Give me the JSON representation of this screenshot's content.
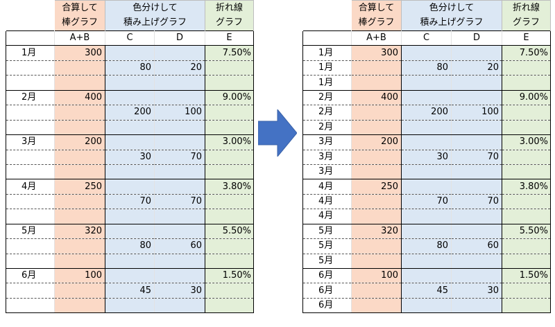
{
  "left_table": {
    "header_top": [
      "合算して",
      "色分けして",
      "折れ線"
    ],
    "header_bottom": [
      "棒グラフ",
      "積み上げグラフ",
      "グラフ"
    ],
    "col_headers": [
      "",
      "A+B",
      "C",
      "D",
      "E"
    ],
    "rows": [
      [
        "1月",
        "300",
        "",
        "",
        "7.50%"
      ],
      [
        "",
        "",
        "80",
        "20",
        ""
      ],
      [
        "",
        "",
        "",
        "",
        ""
      ],
      [
        "2月",
        "400",
        "",
        "",
        "9.00%"
      ],
      [
        "",
        "",
        "200",
        "100",
        ""
      ],
      [
        "",
        "",
        "",
        "",
        ""
      ],
      [
        "3月",
        "200",
        "",
        "",
        "3.00%"
      ],
      [
        "",
        "",
        "30",
        "70",
        ""
      ],
      [
        "",
        "",
        "",
        "",
        ""
      ],
      [
        "4月",
        "250",
        "",
        "",
        "3.80%"
      ],
      [
        "",
        "",
        "70",
        "70",
        ""
      ],
      [
        "",
        "",
        "",
        "",
        ""
      ],
      [
        "5月",
        "320",
        "",
        "",
        "5.50%"
      ],
      [
        "",
        "",
        "80",
        "60",
        ""
      ],
      [
        "",
        "",
        "",
        "",
        ""
      ],
      [
        "6月",
        "100",
        "",
        "",
        "1.50%"
      ],
      [
        "",
        "",
        "45",
        "30",
        ""
      ],
      [
        "",
        "",
        "",
        "",
        ""
      ]
    ]
  },
  "right_table": {
    "header_top": [
      "合算して",
      "色分けして",
      "折れ線"
    ],
    "header_bottom": [
      "棒グラフ",
      "積み上げグラフ",
      "グラフ"
    ],
    "col_headers": [
      "",
      "A+B",
      "C",
      "D",
      "E"
    ],
    "rows": [
      [
        "1月",
        "300",
        "",
        "",
        "7.50%"
      ],
      [
        "1月",
        "",
        "80",
        "20",
        ""
      ],
      [
        "1月",
        "",
        "",
        "",
        ""
      ],
      [
        "2月",
        "400",
        "",
        "",
        "9.00%"
      ],
      [
        "2月",
        "",
        "200",
        "100",
        ""
      ],
      [
        "2月",
        "",
        "",
        "",
        ""
      ],
      [
        "3月",
        "200",
        "",
        "",
        "3.00%"
      ],
      [
        "3月",
        "",
        "30",
        "70",
        ""
      ],
      [
        "3月",
        "",
        "",
        "",
        ""
      ],
      [
        "4月",
        "250",
        "",
        "",
        "3.80%"
      ],
      [
        "4月",
        "",
        "70",
        "70",
        ""
      ],
      [
        "4月",
        "",
        "",
        "",
        ""
      ],
      [
        "5月",
        "320",
        "",
        "",
        "5.50%"
      ],
      [
        "5月",
        "",
        "80",
        "60",
        ""
      ],
      [
        "5月",
        "",
        "",
        "",
        ""
      ],
      [
        "6月",
        "100",
        "",
        "",
        "1.50%"
      ],
      [
        "6月",
        "",
        "45",
        "30",
        ""
      ],
      [
        "6月",
        "",
        "",
        "",
        ""
      ]
    ]
  },
  "arrow": {
    "icon": "right-arrow-icon",
    "color": "#4472c4"
  },
  "colors": {
    "sum_bar": "#fbd9c6",
    "stacked": "#dbe7f4",
    "line": "#e3efd8"
  }
}
